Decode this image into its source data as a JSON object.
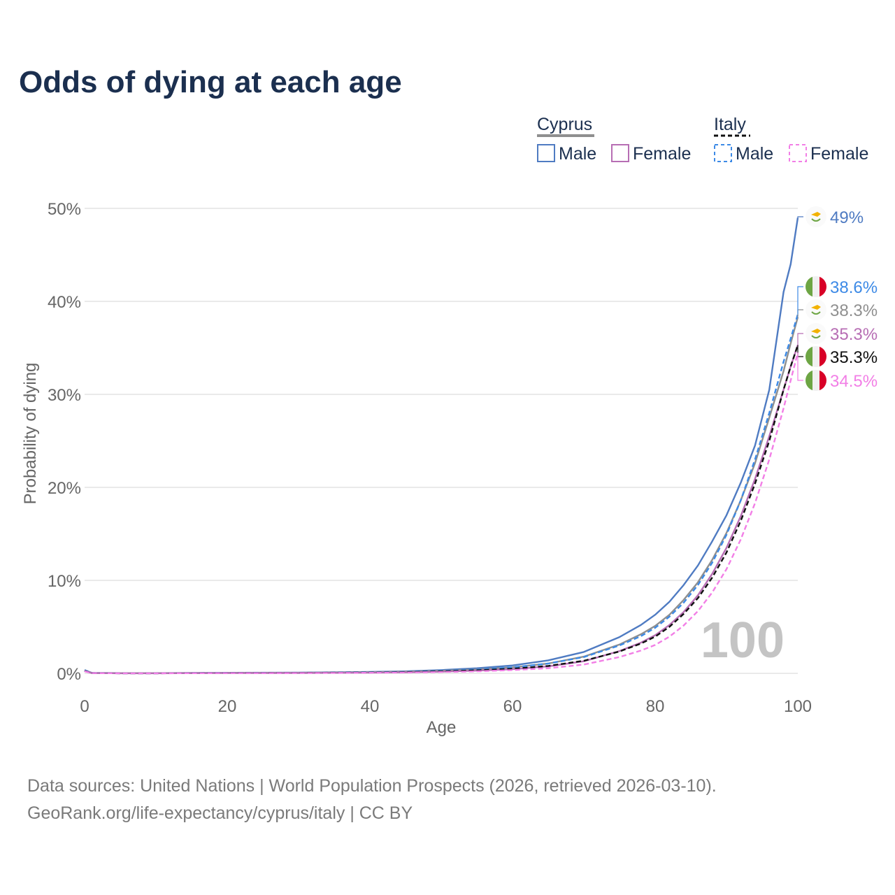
{
  "title": "Odds of dying at each age",
  "legend": {
    "cyprus_label": "Cyprus",
    "italy_label": "Italy",
    "cyprus_male": "Male",
    "cyprus_female": "Female",
    "italy_male": "Male",
    "italy_female": "Female"
  },
  "sources": {
    "line1": "Data sources: United Nations | World Population Prospects (2026, retrieved 2026-03-10).",
    "line2": "GeoRank.org/life-expectancy/cyprus/italy | CC BY"
  },
  "colors": {
    "cyprus_male": "#4f7bc2",
    "cyprus_female": "#b76eb4",
    "cyprus_both": "#8f8f8f",
    "italy_male": "#3d8ae6",
    "italy_female": "#f27fe6",
    "italy_both": "#111111",
    "title": "#1b2f4f"
  },
  "chart_data": {
    "type": "line",
    "title": "Odds of dying at each age",
    "xlabel": "Age",
    "ylabel": "Probability of dying",
    "xlim": [
      0,
      100
    ],
    "ylim": [
      0,
      50
    ],
    "xticks": [
      0,
      20,
      40,
      60,
      80,
      100
    ],
    "yticks": [
      0,
      10,
      20,
      30,
      40,
      50
    ],
    "ytick_labels": [
      "0%",
      "10%",
      "20%",
      "30%",
      "40%",
      "50%"
    ],
    "watermark": "100",
    "x": [
      0,
      1,
      5,
      10,
      20,
      30,
      40,
      45,
      50,
      55,
      60,
      65,
      70,
      75,
      78,
      80,
      82,
      84,
      86,
      88,
      90,
      92,
      94,
      96,
      98,
      99,
      100
    ],
    "series": [
      {
        "name": "Cyprus Male",
        "country": "Cyprus",
        "sex": "Male",
        "dash": "solid",
        "color_key": "cyprus_male",
        "end_label": "49%",
        "values": [
          0.35,
          0.05,
          0.02,
          0.02,
          0.06,
          0.08,
          0.15,
          0.22,
          0.35,
          0.55,
          0.85,
          1.4,
          2.3,
          3.9,
          5.2,
          6.3,
          7.7,
          9.5,
          11.6,
          14.2,
          17.0,
          20.5,
          24.5,
          30.5,
          41.0,
          44.0,
          49.0
        ]
      },
      {
        "name": "Cyprus Both",
        "country": "Cyprus",
        "sex": "Both",
        "dash": "solid",
        "color_key": "cyprus_both",
        "end_label": "38.3%",
        "values": [
          0.3,
          0.04,
          0.02,
          0.02,
          0.05,
          0.06,
          0.12,
          0.18,
          0.27,
          0.42,
          0.65,
          1.05,
          1.8,
          3.1,
          4.2,
          5.1,
          6.3,
          7.9,
          9.8,
          12.2,
          15.1,
          18.6,
          22.6,
          27.5,
          32.5,
          35.5,
          38.3
        ]
      },
      {
        "name": "Cyprus Female",
        "country": "Cyprus",
        "sex": "Female",
        "dash": "solid",
        "color_key": "cyprus_female",
        "end_label": "35.3%",
        "values": [
          0.28,
          0.03,
          0.01,
          0.01,
          0.03,
          0.04,
          0.08,
          0.12,
          0.18,
          0.3,
          0.45,
          0.75,
          1.3,
          2.4,
          3.3,
          4.1,
          5.2,
          6.6,
          8.4,
          10.7,
          13.5,
          16.9,
          20.9,
          25.5,
          30.5,
          33.0,
          35.3
        ]
      },
      {
        "name": "Italy Male",
        "country": "Italy",
        "sex": "Male",
        "dash": "dashed",
        "color_key": "italy_male",
        "end_label": "38.6%",
        "values": [
          0.28,
          0.03,
          0.01,
          0.01,
          0.05,
          0.06,
          0.1,
          0.16,
          0.25,
          0.4,
          0.65,
          1.05,
          1.75,
          3.0,
          4.0,
          4.9,
          6.1,
          7.6,
          9.5,
          11.9,
          14.9,
          18.6,
          23.0,
          28.0,
          33.5,
          36.0,
          38.6
        ]
      },
      {
        "name": "Italy Both",
        "country": "Italy",
        "sex": "Both",
        "dash": "dashed",
        "color_key": "italy_both",
        "end_label": "35.3%",
        "values": [
          0.25,
          0.03,
          0.01,
          0.01,
          0.04,
          0.05,
          0.08,
          0.13,
          0.2,
          0.32,
          0.5,
          0.8,
          1.35,
          2.35,
          3.2,
          3.95,
          5.0,
          6.4,
          8.1,
          10.3,
          13.0,
          16.4,
          20.4,
          25.0,
          30.5,
          33.0,
          35.3
        ]
      },
      {
        "name": "Italy Female",
        "country": "Italy",
        "sex": "Female",
        "dash": "dashed",
        "color_key": "italy_female",
        "end_label": "34.5%",
        "values": [
          0.22,
          0.02,
          0.01,
          0.01,
          0.02,
          0.03,
          0.06,
          0.09,
          0.14,
          0.22,
          0.35,
          0.55,
          0.95,
          1.75,
          2.45,
          3.05,
          3.95,
          5.15,
          6.7,
          8.7,
          11.2,
          14.4,
          18.3,
          23.0,
          28.5,
          31.5,
          34.5
        ]
      }
    ],
    "legend_position": "top-right"
  }
}
